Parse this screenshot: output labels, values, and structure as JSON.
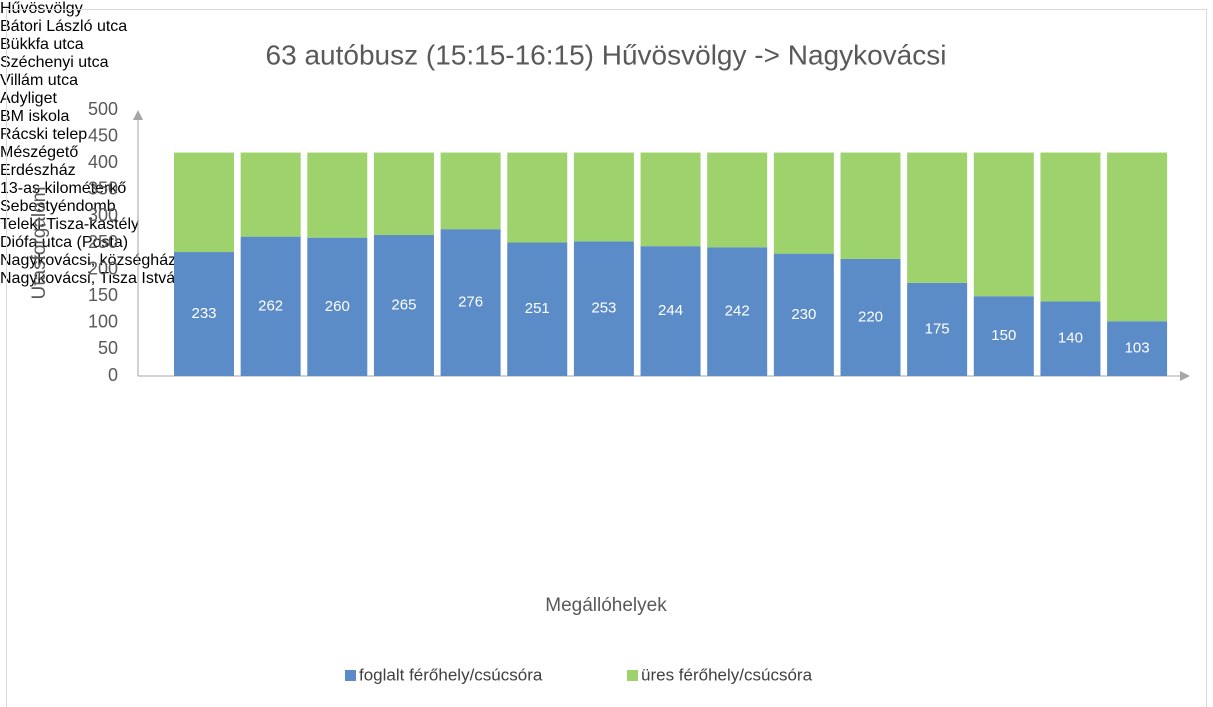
{
  "chart_data": {
    "type": "stacked_bar",
    "title": "63 autóbusz (15:15-16:15) Hűvösvölgy -> Nagykovácsi",
    "x_label": "Megállóhelyek",
    "y_label": "Utasforgalom",
    "categories": [
      "Hűvösvölgy",
      "Bátori László utca",
      "Bükkfa utca",
      "Széchenyi utca",
      "Villám utca",
      "Adyliget",
      "BM iskola",
      "Rácski telep",
      "Mészégető",
      "Erdészház",
      "13-as kilométerkő",
      "Sebestyéndomb",
      "Teleki-Tisza-kastély",
      "Diófa utca (Posta)",
      "Nagykovácsi, községháza",
      "Nagykovácsi, Tisza István tér"
    ],
    "series": [
      {
        "name": "foglalt férőhely/csúcsóra",
        "color": "#5b8cc8",
        "values": [
          233,
          262,
          260,
          265,
          276,
          251,
          253,
          244,
          242,
          230,
          220,
          175,
          150,
          140,
          103,
          null
        ],
        "data_labels": true
      },
      {
        "name": "üres férőhely/csúcsóra",
        "color": "#9dd26c",
        "values": [
          187,
          158,
          160,
          155,
          144,
          169,
          167,
          176,
          178,
          190,
          200,
          245,
          270,
          280,
          317,
          null
        ]
      }
    ],
    "ylim": [
      0,
      500
    ],
    "yticks": [
      0,
      50,
      100,
      150,
      200,
      250,
      300,
      350,
      400,
      450,
      500
    ],
    "grid": false,
    "legend": "bottom"
  }
}
